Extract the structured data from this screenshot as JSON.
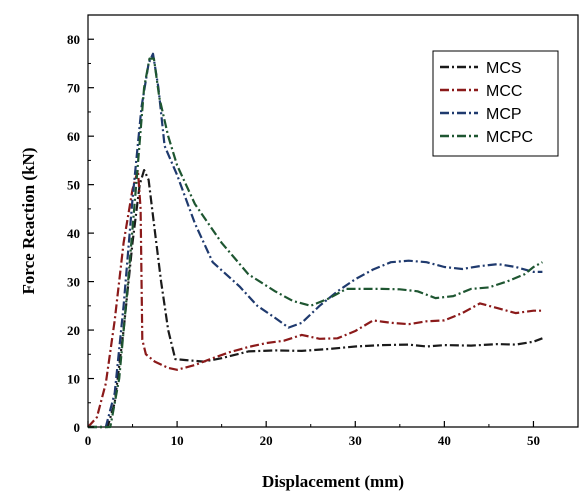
{
  "chart_data": {
    "type": "line",
    "xlabel": "Displacement (mm)",
    "ylabel": "Force Reaction (kN)",
    "xlim": [
      0,
      55
    ],
    "ylim": [
      0,
      85
    ],
    "xticks": [
      0,
      10,
      20,
      30,
      40,
      50
    ],
    "yticks": [
      0,
      10,
      20,
      30,
      40,
      50,
      60,
      70,
      80
    ],
    "grid": false,
    "legend_position": "top-right",
    "series": [
      {
        "name": "MCS",
        "color": "#1a1a1a",
        "x": [
          0,
          2.2,
          3,
          4,
          5,
          5.8,
          6.3,
          6.8,
          7.4,
          8.2,
          9,
          9.8,
          11,
          13,
          15,
          18,
          21,
          24,
          27,
          30,
          33,
          36,
          38,
          40,
          43,
          46,
          48,
          50,
          51
        ],
        "y": [
          0,
          0,
          5,
          20,
          38,
          50,
          53,
          51,
          42,
          30,
          20,
          14,
          13.8,
          13.5,
          14.2,
          15.6,
          15.8,
          15.7,
          16.1,
          16.6,
          16.9,
          17.0,
          16.6,
          16.9,
          16.8,
          17.1,
          17.0,
          17.6,
          18.3
        ]
      },
      {
        "name": "MCC",
        "color": "#8b1a1a",
        "x": [
          0,
          1,
          2,
          3,
          4,
          5,
          5.6,
          5.9,
          6.1,
          6.5,
          7.5,
          9,
          10,
          12,
          14,
          16,
          18,
          20,
          22,
          24,
          26,
          28,
          30,
          32,
          34,
          36,
          38,
          40,
          42,
          44,
          46,
          48,
          50,
          51
        ],
        "y": [
          0,
          2,
          9,
          22,
          38,
          49,
          53,
          45,
          18,
          15,
          13.5,
          12.2,
          11.8,
          12.8,
          14.2,
          15.5,
          16.5,
          17.3,
          17.8,
          19,
          18.2,
          18.3,
          19.8,
          22,
          21.5,
          21.2,
          21.8,
          22,
          23.5,
          25.5,
          24.5,
          23.5,
          24,
          24
        ]
      },
      {
        "name": "MCP",
        "color": "#1f3a6e",
        "x": [
          0,
          2,
          3,
          4,
          5,
          6,
          6.8,
          7.3,
          7.9,
          8.6,
          10,
          12,
          14,
          17,
          19,
          21,
          22.5,
          24,
          26,
          28,
          30,
          32,
          34,
          36,
          38,
          40,
          42,
          44,
          46,
          48,
          50,
          51
        ],
        "y": [
          0,
          0,
          7,
          25,
          47,
          66,
          75,
          77,
          70,
          58,
          52,
          42,
          34,
          29,
          25,
          22.5,
          20.5,
          21.5,
          25,
          28,
          30.5,
          32.5,
          34,
          34.3,
          34,
          33,
          32.6,
          33.2,
          33.6,
          33,
          32,
          32
        ]
      },
      {
        "name": "MCPC",
        "color": "#1e5631",
        "x": [
          0,
          2.5,
          3.5,
          4.5,
          5.5,
          6.3,
          6.9,
          7.4,
          8,
          9,
          10,
          12,
          15,
          18,
          21,
          23,
          25,
          27,
          29,
          31,
          33,
          35,
          37,
          39,
          41,
          43,
          45,
          47,
          49,
          50,
          51
        ],
        "y": [
          0,
          0,
          10,
          30,
          52,
          70,
          76,
          76,
          68,
          60,
          54,
          46,
          38,
          31.5,
          28,
          26,
          25,
          26.5,
          28.5,
          28.5,
          28.5,
          28.4,
          28,
          26.6,
          27,
          28.5,
          28.8,
          30,
          31.5,
          33,
          34
        ]
      }
    ]
  }
}
